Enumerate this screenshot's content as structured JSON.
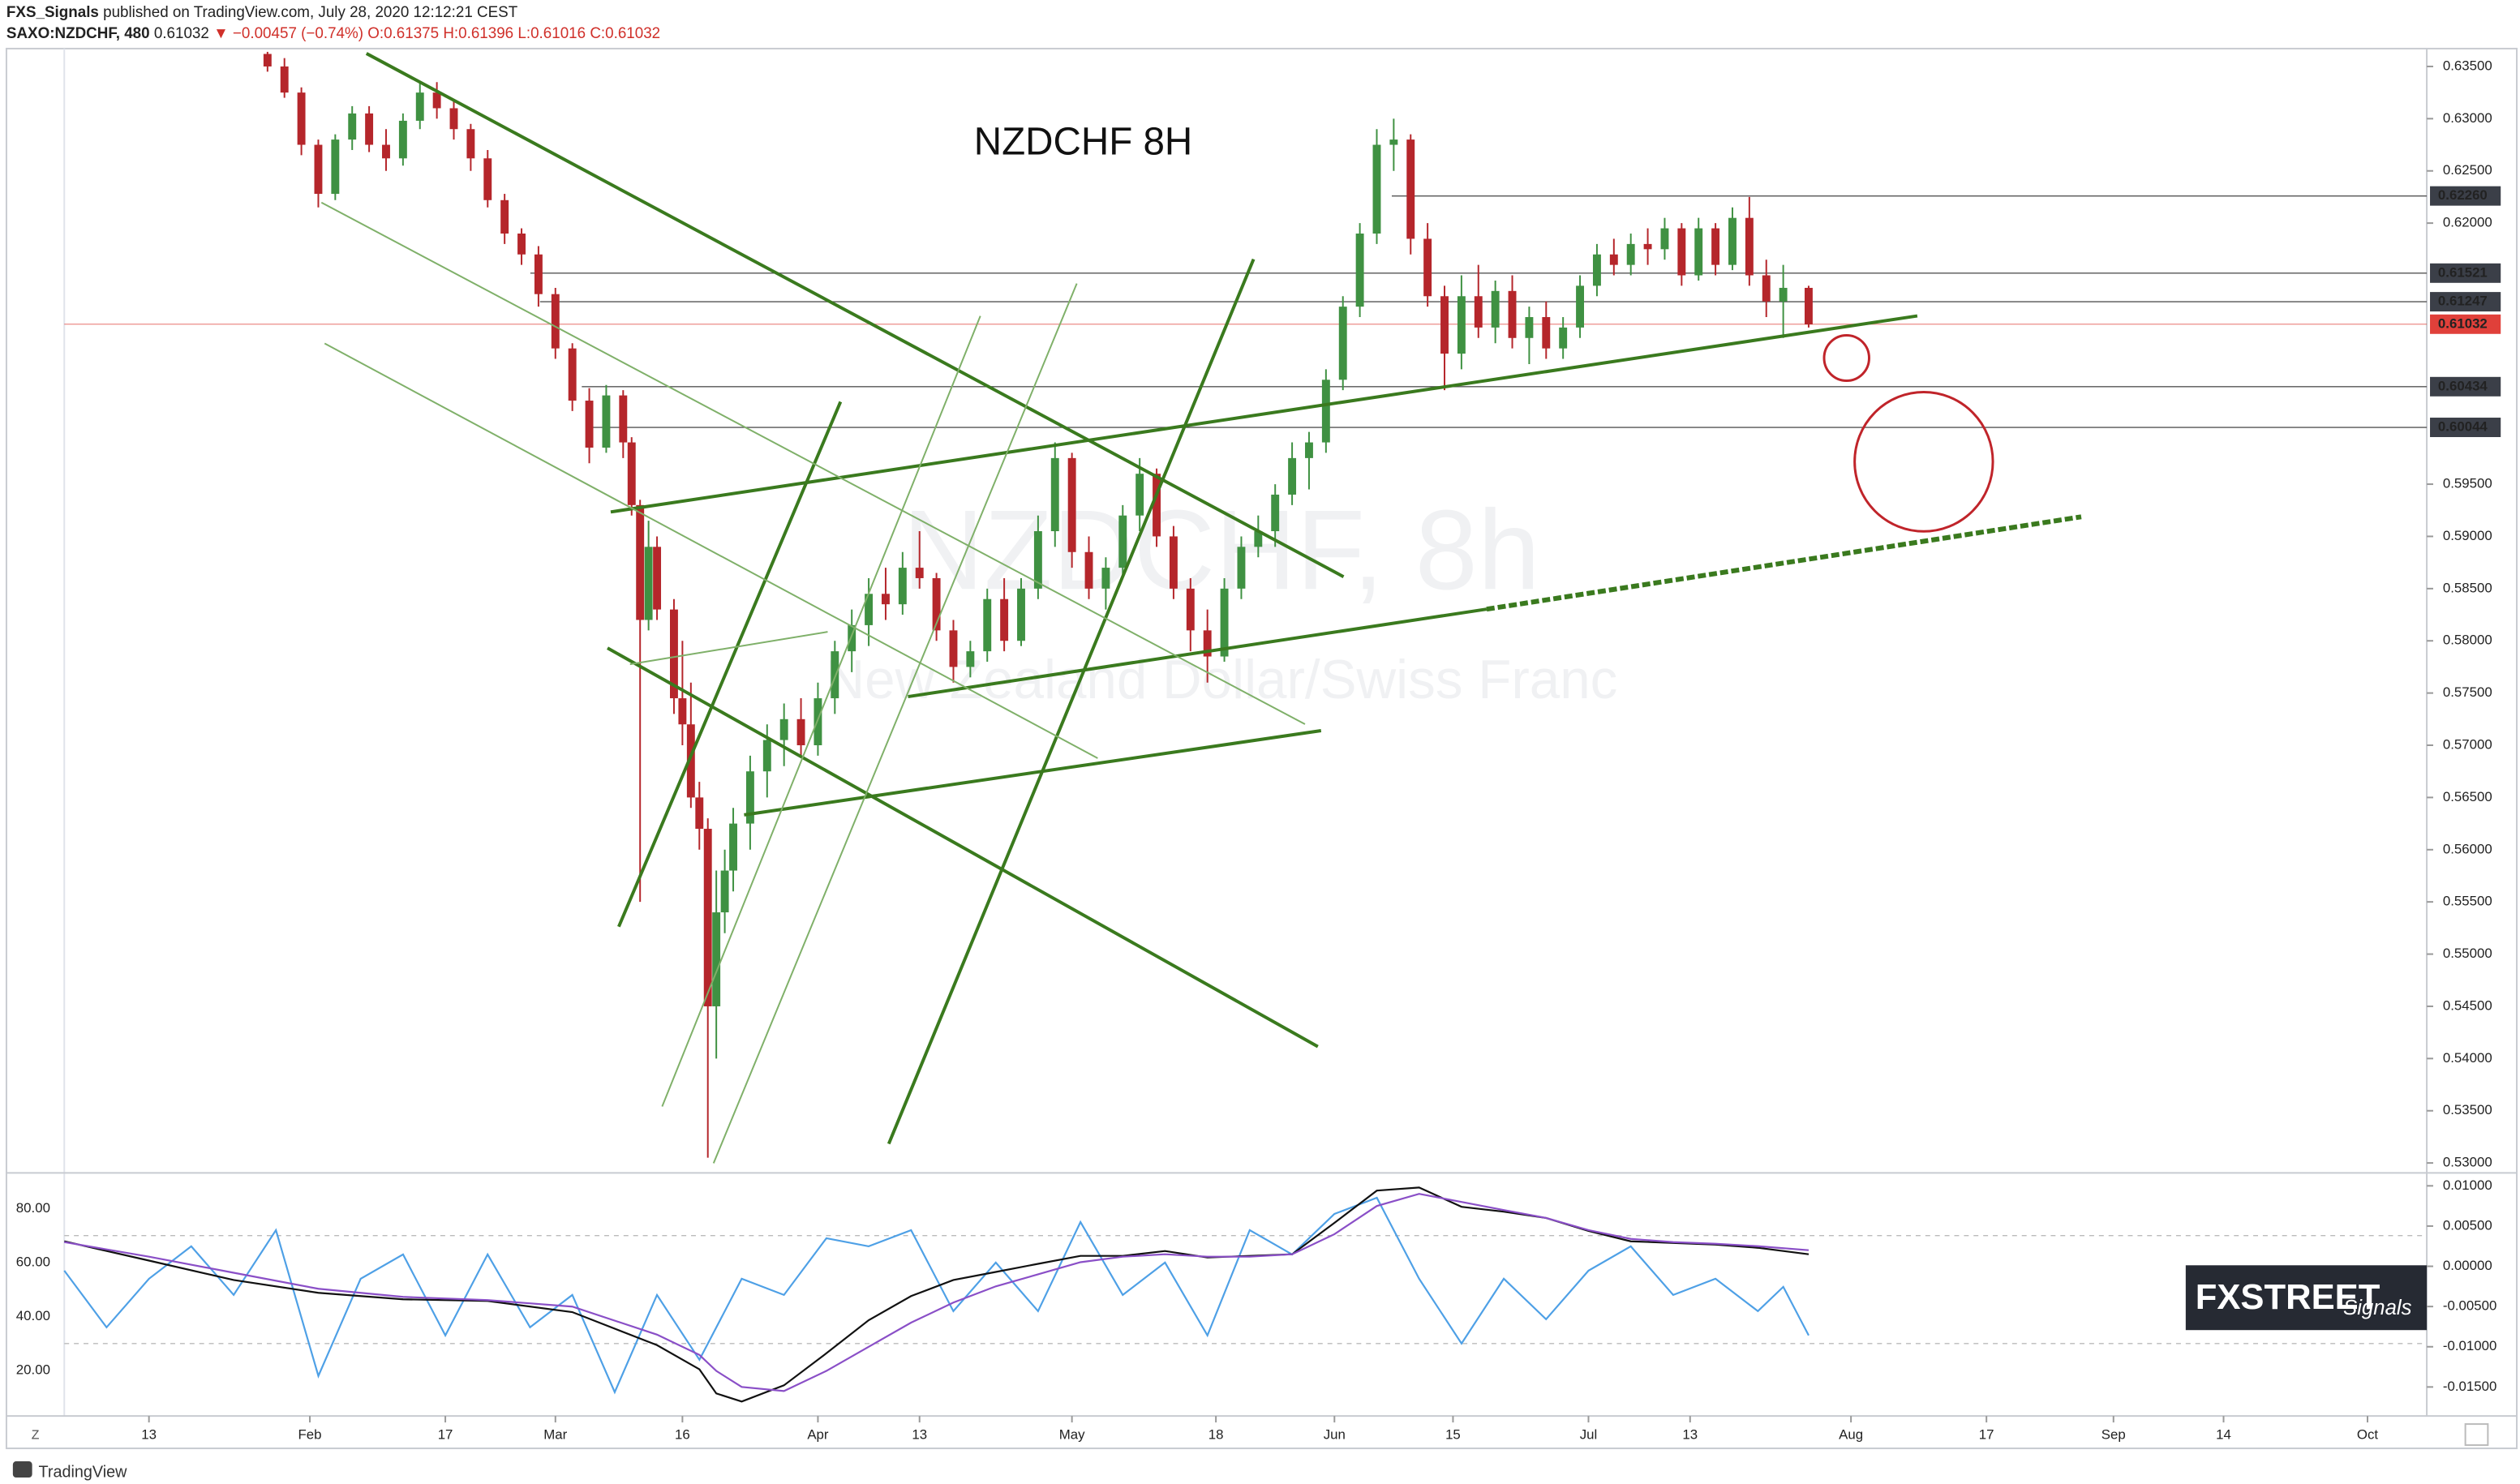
{
  "header": {
    "publisher": "FXS_Signals",
    "published": "published on TradingView.com, July 28, 2020 12:12:21 CEST",
    "symbol": "SAXO:NZDCHF, 480",
    "last": "0.61032",
    "change": "▼ −0.00457 (−0.74%)",
    "open": "O:0.61375",
    "high": "H:0.61396",
    "low": "L:0.61016",
    "close": "C:0.61032"
  },
  "logo": {
    "main": "FXSTREET",
    "sub": "Signals"
  },
  "footer": {
    "brand": "TradingView",
    "zoom_button": "Z"
  },
  "chart_data": [
    {
      "type": "candlestick",
      "title": "NZDCHF 8H",
      "watermark": "NZDCHF, 8h",
      "watermark_subtitle": "New Zealand Dollar/Swiss Franc",
      "up_color": "#3f9142",
      "down_color": "#b5262b",
      "x": [
        27,
        29,
        31,
        33,
        35,
        37,
        39,
        41,
        43,
        45,
        47,
        49,
        51,
        53,
        55,
        57,
        59,
        61,
        63,
        65,
        67,
        69,
        70,
        71,
        72,
        73,
        75,
        76,
        77,
        78,
        79,
        80,
        81,
        82,
        84,
        86,
        88,
        90,
        92,
        94,
        96,
        98,
        100,
        102,
        104,
        106,
        108,
        110,
        112,
        114,
        116,
        118,
        120,
        122,
        124,
        126,
        128,
        130,
        132,
        134,
        136,
        138,
        140,
        142,
        144,
        146,
        148,
        150,
        152,
        154,
        156,
        158,
        160,
        162,
        164,
        166,
        168,
        170,
        172,
        174,
        176,
        178,
        180,
        182,
        184,
        186,
        188,
        190,
        192,
        194,
        196,
        198,
        200,
        202,
        204,
        206,
        209
      ],
      "open": [
        0.6362,
        0.635,
        0.6325,
        0.6275,
        0.6228,
        0.628,
        0.6305,
        0.6275,
        0.6262,
        0.6298,
        0.6325,
        0.631,
        0.629,
        0.6262,
        0.6222,
        0.619,
        0.617,
        0.6132,
        0.608,
        0.603,
        0.5985,
        0.6035,
        0.599,
        0.593,
        0.582,
        0.589,
        0.583,
        0.5745,
        0.572,
        0.565,
        0.562,
        0.545,
        0.554,
        0.558,
        0.5625,
        0.5675,
        0.5705,
        0.5725,
        0.57,
        0.5745,
        0.579,
        0.5815,
        0.5845,
        0.5835,
        0.587,
        0.586,
        0.581,
        0.5775,
        0.579,
        0.584,
        0.58,
        0.585,
        0.5905,
        0.5975,
        0.5885,
        0.585,
        0.587,
        0.592,
        0.596,
        0.59,
        0.585,
        0.581,
        0.5785,
        0.585,
        0.589,
        0.5905,
        0.594,
        0.5975,
        0.599,
        0.605,
        0.612,
        0.619,
        0.6275,
        0.628,
        0.6185,
        0.613,
        0.6075,
        0.613,
        0.61,
        0.6135,
        0.609,
        0.611,
        0.608,
        0.61,
        0.614,
        0.617,
        0.616,
        0.618,
        0.6175,
        0.6195,
        0.615,
        0.6195,
        0.616,
        0.6205,
        0.615,
        0.6125,
        0.6138
      ],
      "high": [
        0.6364,
        0.6358,
        0.633,
        0.628,
        0.6285,
        0.6312,
        0.6312,
        0.629,
        0.6305,
        0.6335,
        0.6335,
        0.6318,
        0.6295,
        0.627,
        0.6228,
        0.6195,
        0.6178,
        0.6138,
        0.6085,
        0.6042,
        0.6045,
        0.604,
        0.5995,
        0.5935,
        0.5915,
        0.59,
        0.584,
        0.58,
        0.576,
        0.5665,
        0.563,
        0.558,
        0.56,
        0.564,
        0.569,
        0.572,
        0.574,
        0.5745,
        0.576,
        0.58,
        0.583,
        0.586,
        0.587,
        0.5885,
        0.5905,
        0.5865,
        0.582,
        0.58,
        0.585,
        0.586,
        0.586,
        0.592,
        0.599,
        0.598,
        0.59,
        0.588,
        0.593,
        0.5975,
        0.5965,
        0.591,
        0.586,
        0.583,
        0.586,
        0.59,
        0.592,
        0.595,
        0.599,
        0.6,
        0.606,
        0.613,
        0.62,
        0.629,
        0.63,
        0.6285,
        0.62,
        0.614,
        0.615,
        0.616,
        0.6145,
        0.615,
        0.612,
        0.6125,
        0.611,
        0.615,
        0.618,
        0.6185,
        0.619,
        0.6195,
        0.6205,
        0.62,
        0.6205,
        0.62,
        0.6215,
        0.6225,
        0.6165,
        0.616,
        0.614
      ],
      "low": [
        0.6345,
        0.632,
        0.6265,
        0.6215,
        0.6222,
        0.627,
        0.6268,
        0.625,
        0.6255,
        0.629,
        0.63,
        0.628,
        0.625,
        0.6215,
        0.618,
        0.616,
        0.612,
        0.607,
        0.602,
        0.597,
        0.598,
        0.5975,
        0.592,
        0.555,
        0.581,
        0.582,
        0.573,
        0.57,
        0.564,
        0.56,
        0.5305,
        0.54,
        0.552,
        0.556,
        0.56,
        0.565,
        0.568,
        0.569,
        0.569,
        0.573,
        0.577,
        0.5795,
        0.582,
        0.5825,
        0.585,
        0.58,
        0.576,
        0.5765,
        0.578,
        0.579,
        0.5795,
        0.584,
        0.589,
        0.587,
        0.584,
        0.583,
        0.586,
        0.5905,
        0.589,
        0.584,
        0.579,
        0.576,
        0.578,
        0.584,
        0.588,
        0.589,
        0.593,
        0.5945,
        0.598,
        0.604,
        0.611,
        0.618,
        0.625,
        0.617,
        0.612,
        0.604,
        0.606,
        0.609,
        0.6085,
        0.608,
        0.6065,
        0.607,
        0.607,
        0.609,
        0.613,
        0.615,
        0.615,
        0.616,
        0.6165,
        0.614,
        0.6145,
        0.615,
        0.6155,
        0.614,
        0.611,
        0.609,
        0.61
      ],
      "close": [
        0.635,
        0.6325,
        0.6275,
        0.6228,
        0.628,
        0.6305,
        0.6275,
        0.6262,
        0.6298,
        0.6325,
        0.631,
        0.629,
        0.6262,
        0.6222,
        0.619,
        0.617,
        0.6132,
        0.608,
        0.603,
        0.5985,
        0.6035,
        0.599,
        0.593,
        0.582,
        0.589,
        0.583,
        0.5745,
        0.572,
        0.565,
        0.562,
        0.545,
        0.554,
        0.558,
        0.5625,
        0.5675,
        0.5705,
        0.5725,
        0.57,
        0.5745,
        0.579,
        0.5815,
        0.5845,
        0.5835,
        0.587,
        0.586,
        0.581,
        0.5775,
        0.579,
        0.584,
        0.58,
        0.585,
        0.5905,
        0.5975,
        0.5885,
        0.585,
        0.587,
        0.592,
        0.596,
        0.59,
        0.585,
        0.581,
        0.5785,
        0.585,
        0.589,
        0.5905,
        0.594,
        0.5975,
        0.599,
        0.605,
        0.612,
        0.619,
        0.6275,
        0.628,
        0.6185,
        0.613,
        0.6075,
        0.613,
        0.61,
        0.6135,
        0.609,
        0.611,
        0.608,
        0.61,
        0.614,
        0.617,
        0.616,
        0.618,
        0.6175,
        0.6195,
        0.615,
        0.6195,
        0.616,
        0.6205,
        0.615,
        0.6125,
        0.6138,
        0.6103
      ],
      "xlim": [
        3,
        282
      ],
      "ylim": [
        0.5292,
        0.6364
      ],
      "xticks": [
        {
          "value": 13,
          "label": "13"
        },
        {
          "value": 32,
          "label": "Feb"
        },
        {
          "value": 48,
          "label": "17"
        },
        {
          "value": 61,
          "label": "Mar"
        },
        {
          "value": 76,
          "label": "16"
        },
        {
          "value": 92,
          "label": "Apr"
        },
        {
          "value": 104,
          "label": "13"
        },
        {
          "value": 122,
          "label": "May"
        },
        {
          "value": 139,
          "label": "18"
        },
        {
          "value": 153,
          "label": "Jun"
        },
        {
          "value": 167,
          "label": "15"
        },
        {
          "value": 183,
          "label": "Jul"
        },
        {
          "value": 195,
          "label": "13"
        },
        {
          "value": 214,
          "label": "Aug"
        },
        {
          "value": 230,
          "label": "17"
        },
        {
          "value": 245,
          "label": "Sep"
        },
        {
          "value": 258,
          "label": "14"
        },
        {
          "value": 275,
          "label": "Oct"
        }
      ],
      "yticks": [
        {
          "value": 0.635,
          "label": "0.63500"
        },
        {
          "value": 0.63,
          "label": "0.63000"
        },
        {
          "value": 0.625,
          "label": "0.62500"
        },
        {
          "value": 0.62,
          "label": "0.62000"
        },
        {
          "value": 0.595,
          "label": "0.59500"
        },
        {
          "value": 0.59,
          "label": "0.59000"
        },
        {
          "value": 0.585,
          "label": "0.58500"
        },
        {
          "value": 0.58,
          "label": "0.58000"
        },
        {
          "value": 0.575,
          "label": "0.57500"
        },
        {
          "value": 0.57,
          "label": "0.57000"
        },
        {
          "value": 0.565,
          "label": "0.56500"
        },
        {
          "value": 0.56,
          "label": "0.56000"
        },
        {
          "value": 0.555,
          "label": "0.55500"
        },
        {
          "value": 0.55,
          "label": "0.55000"
        },
        {
          "value": 0.545,
          "label": "0.54500"
        },
        {
          "value": 0.54,
          "label": "0.54000"
        },
        {
          "value": 0.535,
          "label": "0.53500"
        },
        {
          "value": 0.53,
          "label": "0.53000"
        }
      ],
      "levels": [
        {
          "value": 0.6226,
          "label": "0.62260"
        },
        {
          "value": 0.61521,
          "label": "0.61521"
        },
        {
          "value": 0.61247,
          "label": "0.61247"
        },
        {
          "value": 0.60434,
          "label": "0.60434"
        },
        {
          "value": 0.60044,
          "label": "0.60044"
        }
      ],
      "last_price": {
        "value": 0.61032,
        "label": "0.61032"
      },
      "last_color": "#e0403a"
    },
    {
      "type": "line",
      "x": [
        3,
        8,
        13,
        18,
        23,
        28,
        33,
        38,
        43,
        48,
        53,
        58,
        63,
        68,
        73,
        78,
        83,
        88,
        93,
        98,
        103,
        108,
        113,
        118,
        123,
        128,
        133,
        138,
        143,
        148,
        153,
        158,
        163,
        168,
        173,
        178,
        183,
        188,
        193,
        198,
        203,
        206,
        209
      ],
      "xlim": [
        3,
        282
      ],
      "ylim": [
        3.8,
        92
      ],
      "y2lim": [
        -0.0184,
        0.0112
      ],
      "yticks": [
        {
          "value": 80,
          "label": "80.00"
        },
        {
          "value": 60,
          "label": "60.00"
        },
        {
          "value": 40,
          "label": "40.00"
        },
        {
          "value": 20,
          "label": "20.00"
        }
      ],
      "y2ticks": [
        {
          "value": 0.01,
          "label": "0.01000"
        },
        {
          "value": 0.005,
          "label": "0.00500"
        },
        {
          "value": 0,
          "label": "0.00000"
        },
        {
          "value": -0.005,
          "label": "-0.00500"
        },
        {
          "value": -0.01,
          "label": "-0.01000"
        },
        {
          "value": -0.015,
          "label": "-0.01500"
        }
      ],
      "bands": [
        70,
        30
      ],
      "series": [
        {
          "color": "#4ea0e6",
          "values": [
            57,
            36,
            54,
            66,
            48,
            72,
            18,
            54,
            63,
            33,
            63,
            36,
            48,
            12,
            48,
            24,
            54,
            48,
            69,
            66,
            72,
            42,
            60,
            42,
            75,
            48,
            60,
            33,
            72,
            63,
            78,
            84,
            54,
            30,
            54,
            39,
            57,
            66,
            48,
            54,
            42,
            51,
            33
          ]
        },
        {
          "color": "#111111",
          "axis": "y2",
          "x": [
            3,
            13,
            23,
            33,
            43,
            53,
            63,
            73,
            78,
            80,
            83,
            88,
            93,
            98,
            103,
            108,
            113,
            118,
            123,
            128,
            133,
            138,
            143,
            148,
            153,
            158,
            163,
            168,
            173,
            178,
            183,
            188,
            193,
            198,
            203,
            209
          ],
          "values": [
            0.0031,
            0.0007,
            -0.0017,
            -0.0033,
            -0.0041,
            -0.0043,
            -0.0057,
            -0.0098,
            -0.0128,
            -0.0158,
            -0.0168,
            -0.0148,
            -0.0108,
            -0.0067,
            -0.0037,
            -0.0017,
            -0.0007,
            0.0003,
            0.0013,
            0.0013,
            0.0019,
            0.0011,
            0.0013,
            0.0015,
            0.0054,
            0.0094,
            0.0098,
            0.0074,
            0.0068,
            0.006,
            0.0044,
            0.0031,
            0.0029,
            0.0027,
            0.0023,
            0.0015
          ]
        },
        {
          "color": "#8a4fc7",
          "axis": "y2",
          "x": [
            3,
            13,
            23,
            33,
            43,
            53,
            63,
            73,
            78,
            80,
            83,
            88,
            93,
            98,
            103,
            108,
            113,
            118,
            123,
            128,
            133,
            138,
            143,
            148,
            153,
            158,
            163,
            168,
            173,
            178,
            183,
            188,
            193,
            198,
            203,
            209
          ],
          "values": [
            0.003,
            0.0012,
            -0.0008,
            -0.0028,
            -0.0038,
            -0.0042,
            -0.005,
            -0.0085,
            -0.011,
            -0.013,
            -0.015,
            -0.0155,
            -0.013,
            -0.01,
            -0.007,
            -0.0045,
            -0.0025,
            -0.001,
            0.0005,
            0.0012,
            0.0015,
            0.0012,
            0.0012,
            0.0015,
            0.004,
            0.0075,
            0.009,
            0.008,
            0.007,
            0.006,
            0.0045,
            0.0034,
            0.003,
            0.0028,
            0.0025,
            0.002
          ]
        }
      ]
    }
  ]
}
